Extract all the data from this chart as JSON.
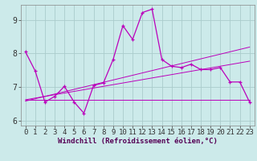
{
  "xlabel": "Windchill (Refroidissement éolien,°C)",
  "background_color": "#cceaea",
  "grid_color": "#aacccc",
  "line_color": "#bb00bb",
  "xlim": [
    -0.5,
    23.5
  ],
  "ylim": [
    5.85,
    9.45
  ],
  "xticks": [
    0,
    1,
    2,
    3,
    4,
    5,
    6,
    7,
    8,
    9,
    10,
    11,
    12,
    13,
    14,
    15,
    16,
    17,
    18,
    19,
    20,
    21,
    22,
    23
  ],
  "yticks": [
    6,
    7,
    8,
    9
  ],
  "hours": [
    0,
    1,
    2,
    3,
    4,
    5,
    6,
    7,
    8,
    9,
    10,
    11,
    12,
    13,
    14,
    15,
    16,
    17,
    18,
    19,
    20,
    21,
    22,
    23
  ],
  "data": [
    8.05,
    7.48,
    6.55,
    6.72,
    7.02,
    6.55,
    6.22,
    7.05,
    7.12,
    7.82,
    8.83,
    8.42,
    9.22,
    9.32,
    7.82,
    7.62,
    7.58,
    7.68,
    7.52,
    7.52,
    7.58,
    7.15,
    7.15,
    6.55
  ],
  "trend_flat": [
    6.62,
    6.62,
    6.62,
    6.62,
    6.62,
    6.62,
    6.62,
    6.62,
    6.62,
    6.62,
    6.62,
    6.62,
    6.62,
    6.62,
    6.62,
    6.62,
    6.62,
    6.62,
    6.62,
    6.62,
    6.62,
    6.62,
    6.62,
    6.62
  ],
  "trend_mid": [
    6.62,
    6.67,
    6.72,
    6.77,
    6.82,
    6.87,
    6.92,
    6.97,
    7.02,
    7.07,
    7.12,
    7.17,
    7.22,
    7.27,
    7.32,
    7.37,
    7.42,
    7.47,
    7.52,
    7.57,
    7.62,
    7.67,
    7.72,
    7.77
  ],
  "trend_steep": [
    6.58,
    6.65,
    6.72,
    6.79,
    6.86,
    6.93,
    7.0,
    7.07,
    7.14,
    7.21,
    7.28,
    7.35,
    7.42,
    7.49,
    7.56,
    7.63,
    7.7,
    7.77,
    7.84,
    7.91,
    7.98,
    8.05,
    8.12,
    8.19
  ],
  "xlabel_color": "#550055",
  "xlabel_fontsize": 6.5,
  "tick_fontsize": 6.5,
  "spine_color": "#888888"
}
